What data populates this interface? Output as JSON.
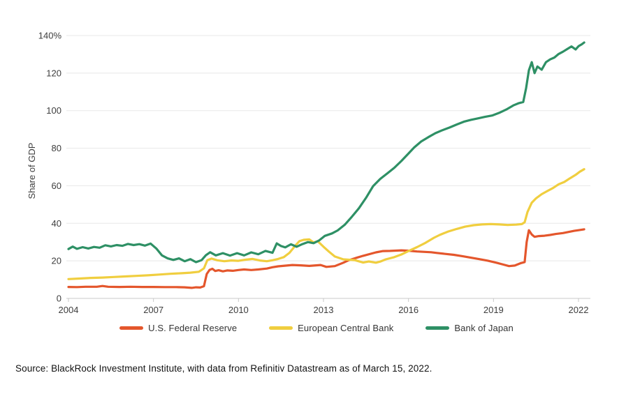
{
  "page": {
    "source_note": "Source: BlackRock Investment Institute, with data from Refinitiv Datastream as of March 15, 2022."
  },
  "chart": {
    "ylabel": "Share of GDP",
    "colors": {
      "grid": "#e8e8e8",
      "axis": "#c9c9c9",
      "tick_text": "#3d3d3d"
    },
    "y_ticks": [
      {
        "value": 0,
        "label": "0"
      },
      {
        "value": 20,
        "label": "20"
      },
      {
        "value": 40,
        "label": "40"
      },
      {
        "value": 60,
        "label": "60"
      },
      {
        "value": 80,
        "label": "80"
      },
      {
        "value": 100,
        "label": "100"
      },
      {
        "value": 120,
        "label": "120"
      },
      {
        "value": 140,
        "label": "140%"
      }
    ],
    "x_ticks": [
      {
        "value": 2004,
        "label": "2004"
      },
      {
        "value": 2007,
        "label": "2007"
      },
      {
        "value": 2010,
        "label": "2010"
      },
      {
        "value": 2013,
        "label": "2013"
      },
      {
        "value": 2016,
        "label": "2016"
      },
      {
        "value": 2019,
        "label": "2019"
      },
      {
        "value": 2022,
        "label": "2022"
      }
    ]
  },
  "chart_data": {
    "type": "line",
    "title": "",
    "xlabel": "",
    "ylabel": "Share of GDP",
    "xlim": [
      2004,
      2022.4
    ],
    "ylim": [
      0,
      140
    ],
    "grid": "horizontal",
    "legend_position": "bottom",
    "series": [
      {
        "name": "U.S. Federal Reserve",
        "color": "#e4562c",
        "points": [
          [
            2004.0,
            6.1
          ],
          [
            2004.3,
            6.0
          ],
          [
            2004.6,
            6.2
          ],
          [
            2005.0,
            6.2
          ],
          [
            2005.2,
            6.6
          ],
          [
            2005.4,
            6.2
          ],
          [
            2005.8,
            6.1
          ],
          [
            2006.2,
            6.2
          ],
          [
            2006.6,
            6.1
          ],
          [
            2007.0,
            6.1
          ],
          [
            2007.4,
            6.0
          ],
          [
            2007.8,
            6.0
          ],
          [
            2008.1,
            5.9
          ],
          [
            2008.35,
            5.6
          ],
          [
            2008.5,
            5.9
          ],
          [
            2008.65,
            5.8
          ],
          [
            2008.78,
            6.5
          ],
          [
            2008.88,
            13.0
          ],
          [
            2008.98,
            15.2
          ],
          [
            2009.08,
            15.8
          ],
          [
            2009.18,
            14.6
          ],
          [
            2009.3,
            15.0
          ],
          [
            2009.45,
            14.4
          ],
          [
            2009.6,
            14.9
          ],
          [
            2009.8,
            14.7
          ],
          [
            2010.0,
            15.1
          ],
          [
            2010.2,
            15.4
          ],
          [
            2010.45,
            15.1
          ],
          [
            2010.7,
            15.4
          ],
          [
            2011.0,
            15.9
          ],
          [
            2011.2,
            16.6
          ],
          [
            2011.4,
            17.1
          ],
          [
            2011.7,
            17.5
          ],
          [
            2011.9,
            17.8
          ],
          [
            2012.2,
            17.6
          ],
          [
            2012.5,
            17.3
          ],
          [
            2012.9,
            17.8
          ],
          [
            2013.1,
            16.8
          ],
          [
            2013.4,
            17.2
          ],
          [
            2013.7,
            19.0
          ],
          [
            2013.9,
            20.4
          ],
          [
            2014.2,
            21.8
          ],
          [
            2014.4,
            22.7
          ],
          [
            2014.85,
            24.5
          ],
          [
            2015.1,
            25.2
          ],
          [
            2015.35,
            25.3
          ],
          [
            2015.75,
            25.6
          ],
          [
            2016.0,
            25.4
          ],
          [
            2016.3,
            25.0
          ],
          [
            2016.8,
            24.6
          ],
          [
            2017.0,
            24.2
          ],
          [
            2017.3,
            23.7
          ],
          [
            2017.6,
            23.2
          ],
          [
            2017.9,
            22.5
          ],
          [
            2018.2,
            21.7
          ],
          [
            2018.5,
            20.9
          ],
          [
            2018.8,
            20.1
          ],
          [
            2019.1,
            19.0
          ],
          [
            2019.35,
            18.0
          ],
          [
            2019.55,
            17.2
          ],
          [
            2019.75,
            17.5
          ],
          [
            2019.95,
            18.7
          ],
          [
            2020.1,
            19.3
          ],
          [
            2020.17,
            30.0
          ],
          [
            2020.25,
            36.3
          ],
          [
            2020.35,
            34.0
          ],
          [
            2020.45,
            32.8
          ],
          [
            2020.6,
            33.2
          ],
          [
            2020.8,
            33.4
          ],
          [
            2021.0,
            33.8
          ],
          [
            2021.2,
            34.3
          ],
          [
            2021.45,
            34.8
          ],
          [
            2021.65,
            35.4
          ],
          [
            2021.85,
            36.0
          ],
          [
            2022.0,
            36.3
          ],
          [
            2022.2,
            36.8
          ]
        ]
      },
      {
        "name": "European Central Bank",
        "color": "#f0ce3f",
        "points": [
          [
            2004.0,
            10.3
          ],
          [
            2004.4,
            10.6
          ],
          [
            2004.8,
            10.9
          ],
          [
            2005.2,
            11.1
          ],
          [
            2005.6,
            11.4
          ],
          [
            2006.0,
            11.7
          ],
          [
            2006.4,
            12.0
          ],
          [
            2006.8,
            12.3
          ],
          [
            2007.2,
            12.7
          ],
          [
            2007.6,
            13.1
          ],
          [
            2008.0,
            13.4
          ],
          [
            2008.3,
            13.7
          ],
          [
            2008.6,
            14.2
          ],
          [
            2008.78,
            16.0
          ],
          [
            2008.9,
            20.3
          ],
          [
            2009.05,
            21.2
          ],
          [
            2009.25,
            20.3
          ],
          [
            2009.5,
            19.8
          ],
          [
            2009.75,
            20.2
          ],
          [
            2010.0,
            20.0
          ],
          [
            2010.25,
            20.6
          ],
          [
            2010.5,
            21.0
          ],
          [
            2010.75,
            20.2
          ],
          [
            2011.0,
            19.8
          ],
          [
            2011.2,
            20.3
          ],
          [
            2011.4,
            21.0
          ],
          [
            2011.6,
            22.0
          ],
          [
            2011.8,
            24.3
          ],
          [
            2012.0,
            28.0
          ],
          [
            2012.15,
            30.5
          ],
          [
            2012.3,
            31.2
          ],
          [
            2012.5,
            31.4
          ],
          [
            2012.65,
            29.8
          ],
          [
            2012.8,
            30.4
          ],
          [
            2013.0,
            27.5
          ],
          [
            2013.2,
            24.8
          ],
          [
            2013.4,
            22.3
          ],
          [
            2013.7,
            20.8
          ],
          [
            2014.1,
            20.4
          ],
          [
            2014.4,
            19.1
          ],
          [
            2014.6,
            19.7
          ],
          [
            2014.85,
            19.0
          ],
          [
            2015.0,
            19.6
          ],
          [
            2015.2,
            20.8
          ],
          [
            2015.5,
            22.0
          ],
          [
            2015.75,
            23.4
          ],
          [
            2016.0,
            25.2
          ],
          [
            2016.3,
            27.3
          ],
          [
            2016.6,
            29.6
          ],
          [
            2016.9,
            32.3
          ],
          [
            2017.1,
            33.8
          ],
          [
            2017.4,
            35.6
          ],
          [
            2017.7,
            37.0
          ],
          [
            2018.0,
            38.2
          ],
          [
            2018.3,
            39.0
          ],
          [
            2018.6,
            39.4
          ],
          [
            2018.9,
            39.6
          ],
          [
            2019.2,
            39.4
          ],
          [
            2019.5,
            39.1
          ],
          [
            2019.8,
            39.3
          ],
          [
            2020.0,
            39.6
          ],
          [
            2020.1,
            40.5
          ],
          [
            2020.2,
            46.0
          ],
          [
            2020.35,
            51.0
          ],
          [
            2020.5,
            53.3
          ],
          [
            2020.7,
            55.5
          ],
          [
            2020.9,
            57.2
          ],
          [
            2021.1,
            58.8
          ],
          [
            2021.3,
            60.8
          ],
          [
            2021.5,
            62.0
          ],
          [
            2021.7,
            64.0
          ],
          [
            2021.9,
            65.8
          ],
          [
            2022.05,
            67.5
          ],
          [
            2022.2,
            68.8
          ]
        ]
      },
      {
        "name": "Bank of Japan",
        "color": "#2e9065",
        "points": [
          [
            2004.0,
            26.3
          ],
          [
            2004.15,
            27.6
          ],
          [
            2004.3,
            26.4
          ],
          [
            2004.5,
            27.3
          ],
          [
            2004.7,
            26.6
          ],
          [
            2004.9,
            27.4
          ],
          [
            2005.1,
            27.0
          ],
          [
            2005.3,
            28.3
          ],
          [
            2005.5,
            27.7
          ],
          [
            2005.7,
            28.4
          ],
          [
            2005.9,
            28.0
          ],
          [
            2006.1,
            29.0
          ],
          [
            2006.3,
            28.4
          ],
          [
            2006.5,
            28.9
          ],
          [
            2006.7,
            28.1
          ],
          [
            2006.9,
            29.2
          ],
          [
            2007.1,
            26.6
          ],
          [
            2007.3,
            22.9
          ],
          [
            2007.5,
            21.3
          ],
          [
            2007.7,
            20.5
          ],
          [
            2007.9,
            21.3
          ],
          [
            2008.1,
            19.8
          ],
          [
            2008.3,
            20.9
          ],
          [
            2008.5,
            19.3
          ],
          [
            2008.7,
            20.4
          ],
          [
            2008.85,
            23.0
          ],
          [
            2009.0,
            24.6
          ],
          [
            2009.2,
            22.9
          ],
          [
            2009.45,
            24.1
          ],
          [
            2009.7,
            22.8
          ],
          [
            2009.95,
            24.1
          ],
          [
            2010.2,
            22.9
          ],
          [
            2010.45,
            24.5
          ],
          [
            2010.7,
            23.5
          ],
          [
            2010.95,
            25.3
          ],
          [
            2011.2,
            24.3
          ],
          [
            2011.35,
            29.3
          ],
          [
            2011.5,
            27.9
          ],
          [
            2011.65,
            27.2
          ],
          [
            2011.85,
            28.8
          ],
          [
            2012.05,
            27.5
          ],
          [
            2012.25,
            28.9
          ],
          [
            2012.45,
            30.0
          ],
          [
            2012.65,
            29.4
          ],
          [
            2012.85,
            30.9
          ],
          [
            2013.05,
            33.3
          ],
          [
            2013.3,
            34.6
          ],
          [
            2013.5,
            36.2
          ],
          [
            2013.75,
            39.2
          ],
          [
            2014.0,
            43.5
          ],
          [
            2014.25,
            48.0
          ],
          [
            2014.5,
            53.5
          ],
          [
            2014.75,
            59.8
          ],
          [
            2015.0,
            63.6
          ],
          [
            2015.25,
            66.6
          ],
          [
            2015.5,
            69.6
          ],
          [
            2015.75,
            73.2
          ],
          [
            2016.0,
            77.2
          ],
          [
            2016.2,
            80.4
          ],
          [
            2016.45,
            83.6
          ],
          [
            2016.7,
            85.9
          ],
          [
            2016.95,
            88.0
          ],
          [
            2017.2,
            89.6
          ],
          [
            2017.45,
            91.0
          ],
          [
            2017.7,
            92.6
          ],
          [
            2017.95,
            94.1
          ],
          [
            2018.2,
            95.1
          ],
          [
            2018.45,
            95.9
          ],
          [
            2018.7,
            96.7
          ],
          [
            2018.95,
            97.4
          ],
          [
            2019.2,
            98.8
          ],
          [
            2019.45,
            100.6
          ],
          [
            2019.7,
            102.8
          ],
          [
            2019.9,
            104.0
          ],
          [
            2020.05,
            104.6
          ],
          [
            2020.15,
            112.0
          ],
          [
            2020.25,
            121.5
          ],
          [
            2020.35,
            125.8
          ],
          [
            2020.45,
            120.0
          ],
          [
            2020.55,
            123.5
          ],
          [
            2020.7,
            121.8
          ],
          [
            2020.85,
            125.8
          ],
          [
            2021.0,
            127.3
          ],
          [
            2021.15,
            128.3
          ],
          [
            2021.3,
            130.2
          ],
          [
            2021.45,
            131.4
          ],
          [
            2021.6,
            132.8
          ],
          [
            2021.75,
            134.2
          ],
          [
            2021.9,
            132.6
          ],
          [
            2022.0,
            134.3
          ],
          [
            2022.1,
            135.2
          ],
          [
            2022.2,
            136.3
          ]
        ]
      }
    ]
  }
}
